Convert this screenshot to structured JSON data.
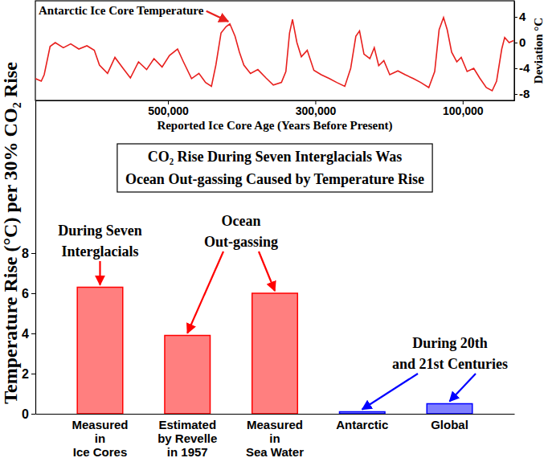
{
  "chart_data": [
    {
      "type": "line",
      "title": "Antarctic Ice Core Temperature",
      "x_label": "Reported Ice Core Age (Years Before Present)",
      "y_label": "Deviation °C",
      "color": "#e8201e",
      "x": [
        680000,
        672000,
        668000,
        660000,
        653000,
        642000,
        632000,
        621000,
        610000,
        600000,
        593000,
        582000,
        572000,
        561000,
        551000,
        540000,
        529000,
        519000,
        508000,
        498000,
        487000,
        479000,
        468000,
        458000,
        449000,
        441000,
        435000,
        428000,
        421000,
        416000,
        409000,
        403000,
        397000,
        388000,
        378000,
        367000,
        357000,
        346000,
        340000,
        335000,
        331000,
        325000,
        319000,
        311000,
        302000,
        292000,
        281000,
        271000,
        260000,
        252000,
        245000,
        240000,
        234000,
        226000,
        220000,
        214000,
        207000,
        199000,
        188000,
        178000,
        167000,
        157000,
        146000,
        138000,
        132000,
        126000,
        121000,
        115000,
        108000,
        102000,
        94000,
        85000,
        77000,
        68000,
        60000,
        54000,
        47000,
        43000,
        37000,
        31000
      ],
      "values": [
        -5.6,
        -6.0,
        -5.0,
        -0.6,
        0.0,
        -0.8,
        -0.2,
        -1.0,
        -0.5,
        -1.2,
        -3.5,
        -4.8,
        -2.3,
        -4.0,
        -5.5,
        -3.0,
        -4.2,
        -2.5,
        -3.8,
        -2.0,
        -1.0,
        -3.0,
        -5.6,
        -4.8,
        -6.2,
        -6.8,
        -3.5,
        1.5,
        2.5,
        2.9,
        1.0,
        -1.5,
        -3.5,
        -4.8,
        -4.2,
        -5.5,
        -6.6,
        -6.2,
        -4.5,
        1.5,
        3.6,
        0.0,
        -2.2,
        -1.2,
        -4.3,
        -5.0,
        -5.6,
        -6.2,
        -6.8,
        -4.0,
        1.0,
        1.8,
        -1.8,
        -2.5,
        -0.8,
        -3.6,
        -2.8,
        -5.0,
        -4.4,
        -5.0,
        -5.6,
        -6.2,
        -7.0,
        -4.5,
        2.0,
        3.9,
        2.0,
        -1.5,
        -3.0,
        -2.3,
        -4.5,
        -4.0,
        -5.5,
        -7.0,
        -7.5,
        -6.0,
        -1.0,
        0.8,
        0.0,
        0.3
      ],
      "xlim": [
        680000,
        30000
      ],
      "xticks": [
        {
          "value": 500000,
          "label": "500,000"
        },
        {
          "value": 300000,
          "label": "300,000"
        },
        {
          "value": 100000,
          "label": "100,000"
        }
      ],
      "ylim": [
        -9,
        6.5
      ],
      "yticks": [
        4,
        0,
        -4,
        -8
      ]
    },
    {
      "type": "bar",
      "title": "CO₂ Rise During Seven Interglacials Was\nOcean Out-gassing Caused by Temperature Rise",
      "y_label": "Temperature Rise (°C) per 30% CO₂ Rise",
      "categories": [
        "Measured\nin\nIce Cores",
        "Estimated\nby Revelle\nin 1957",
        "Measured\nin\nSea Water",
        "Antarctic",
        "Global"
      ],
      "values": [
        6.3,
        3.9,
        6.0,
        0.1,
        0.5
      ],
      "colors": [
        "#ff0000",
        "#ff0000",
        "#ff0000",
        "#0000ff",
        "#0000ff"
      ],
      "ylim": [
        0,
        15.6
      ],
      "yticks": [
        0,
        2,
        4,
        6,
        8
      ],
      "annotations": [
        {
          "text": "During Seven\nInterglacials",
          "color": "#ff0000"
        },
        {
          "text": "Ocean\nOut-gassing",
          "color": "#ff0000"
        },
        {
          "text": "During 20th\nand 21st Centuries",
          "color": "#0000ff"
        }
      ]
    }
  ]
}
